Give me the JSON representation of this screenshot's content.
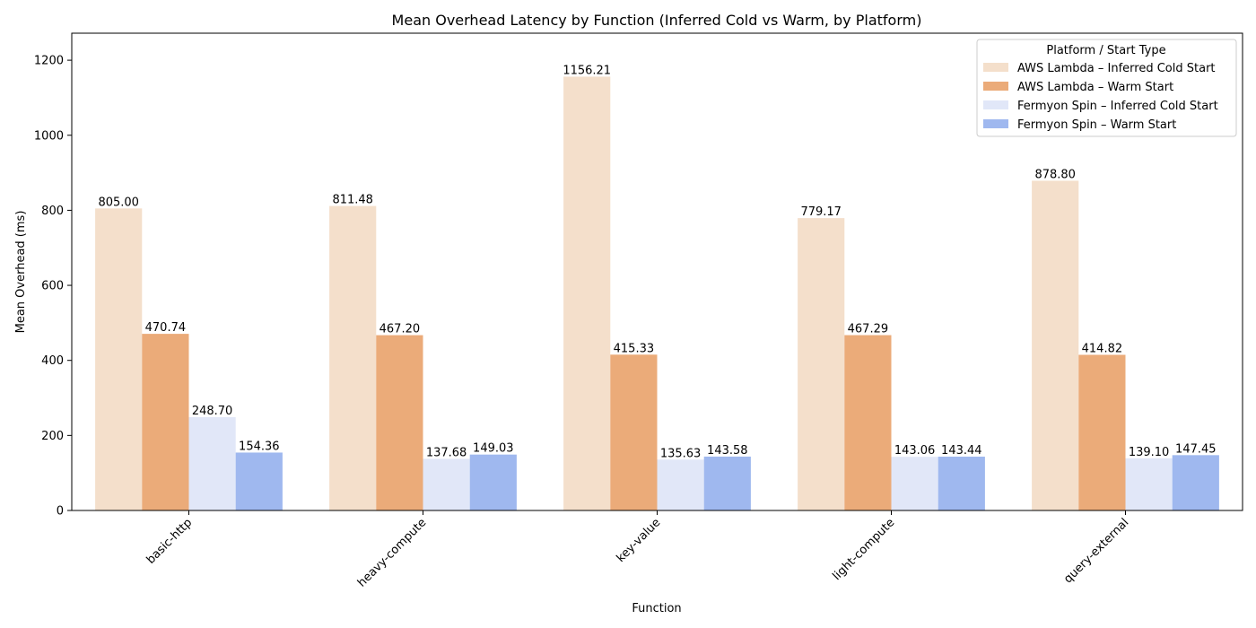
{
  "chart_data": {
    "type": "bar",
    "title": "Mean Overhead Latency by Function (Inferred Cold vs Warm, by Platform)",
    "xlabel": "Function",
    "ylabel": "Mean Overhead (ms)",
    "ylim": [
      0,
      1272
    ],
    "yticks": [
      0,
      200,
      400,
      600,
      800,
      1000,
      1200
    ],
    "grid": false,
    "legend_title": "Platform / Start Type",
    "legend_position": "top-right",
    "categories": [
      "basic-http",
      "heavy-compute",
      "key-value",
      "light-compute",
      "query-external"
    ],
    "series": [
      {
        "name": "AWS Lambda – Inferred Cold Start",
        "color": "#f4dfcb",
        "values": [
          805.0,
          811.48,
          1156.21,
          779.17,
          878.8
        ],
        "labels": [
          "805.00",
          "811.48",
          "1156.21",
          "779.17",
          "878.80"
        ]
      },
      {
        "name": "AWS Lambda – Warm Start",
        "color": "#ebab79",
        "values": [
          470.74,
          467.2,
          415.33,
          467.29,
          414.82
        ],
        "labels": [
          "470.74",
          "467.20",
          "415.33",
          "467.29",
          "414.82"
        ]
      },
      {
        "name": "Fermyon Spin – Inferred Cold Start",
        "color": "#e1e7f8",
        "values": [
          248.7,
          137.68,
          135.63,
          143.06,
          139.1
        ],
        "labels": [
          "248.70",
          "137.68",
          "135.63",
          "143.06",
          "139.10"
        ]
      },
      {
        "name": "Fermyon Spin – Warm Start",
        "color": "#9fb8ef",
        "values": [
          154.36,
          149.03,
          143.58,
          143.44,
          147.45
        ],
        "labels": [
          "154.36",
          "149.03",
          "143.58",
          "143.44",
          "147.45"
        ]
      }
    ]
  }
}
